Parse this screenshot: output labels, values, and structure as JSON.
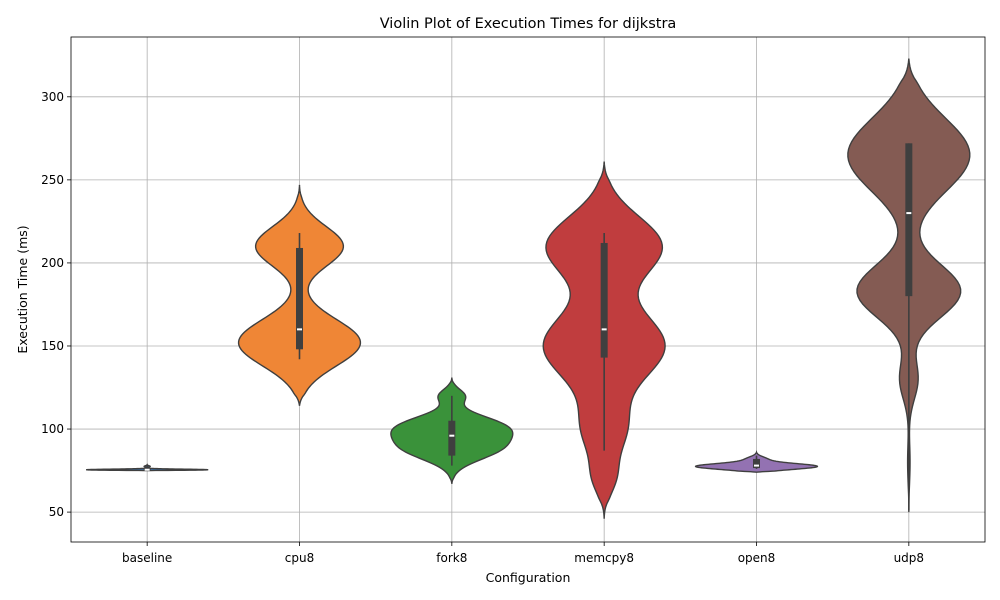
{
  "chart_data": {
    "type": "violin",
    "title": "Violin Plot of Execution Times for dijkstra",
    "xlabel": "Configuration",
    "ylabel": "Execution Time (ms)",
    "ylim": [
      32,
      336
    ],
    "yticks": [
      50,
      100,
      150,
      200,
      250,
      300
    ],
    "grid": true,
    "categories": [
      "baseline",
      "cpu8",
      "fork8",
      "memcpy8",
      "open8",
      "udp8"
    ],
    "series": [
      {
        "category": "baseline",
        "color": "#3b75af",
        "violin": {
          "y_min": 75.0,
          "y_max": 78.5,
          "max_half_width_frac": 0.4,
          "modes": [
            [
              75.5,
              1.0,
              0.35
            ],
            [
              77.5,
              0.05,
              0.4
            ]
          ]
        },
        "box": {
          "whisker_low": 75.0,
          "q1": 75.2,
          "median": 75.5,
          "q3": 76.0,
          "whisker_high": 78.5
        }
      },
      {
        "category": "cpu8",
        "color": "#ef8636",
        "violin": {
          "y_min": 114,
          "y_max": 247,
          "max_half_width_frac": 0.4,
          "modes": [
            [
              152,
              1.0,
              14
            ],
            [
              210,
              0.72,
              12
            ]
          ]
        },
        "box": {
          "whisker_low": 142,
          "q1": 148,
          "median": 160,
          "q3": 209,
          "whisker_high": 218
        }
      },
      {
        "category": "fork8",
        "color": "#3a923a",
        "violin": {
          "y_min": 67,
          "y_max": 131,
          "max_half_width_frac": 0.4,
          "modes": [
            [
              88,
              0.85,
              7
            ],
            [
              101,
              1.0,
              7
            ],
            [
              120,
              0.25,
              4
            ]
          ]
        },
        "box": {
          "whisker_low": 78,
          "q1": 84,
          "median": 96,
          "q3": 105,
          "whisker_high": 120
        }
      },
      {
        "category": "memcpy8",
        "color": "#c03d3e",
        "violin": {
          "y_min": 46,
          "y_max": 261,
          "max_half_width_frac": 0.4,
          "modes": [
            [
              150,
              1.0,
              20
            ],
            [
              210,
              0.95,
              18
            ],
            [
              100,
              0.35,
              16
            ],
            [
              70,
              0.15,
              10
            ]
          ]
        },
        "box": {
          "whisker_low": 87,
          "q1": 143,
          "median": 160,
          "q3": 212,
          "whisker_high": 218
        }
      },
      {
        "category": "open8",
        "color": "#9372b2",
        "violin": {
          "y_min": 74,
          "y_max": 86,
          "max_half_width_frac": 0.4,
          "modes": [
            [
              77.5,
              1.0,
              1.8
            ],
            [
              82,
              0.15,
              1.5
            ]
          ]
        },
        "box": {
          "whisker_low": 76,
          "q1": 76.5,
          "median": 78,
          "q3": 82,
          "whisker_high": 84
        }
      },
      {
        "category": "udp8",
        "color": "#845b53",
        "violin": {
          "y_min": 50,
          "y_max": 323,
          "max_half_width_frac": 0.4,
          "modes": [
            [
              183,
              0.85,
              16
            ],
            [
              265,
              1.0,
              22
            ],
            [
              130,
              0.15,
              12
            ],
            [
              80,
              0.02,
              12
            ]
          ]
        },
        "box": {
          "whisker_low": 51,
          "q1": 180,
          "median": 230,
          "q3": 272,
          "whisker_high": 272
        }
      }
    ]
  }
}
